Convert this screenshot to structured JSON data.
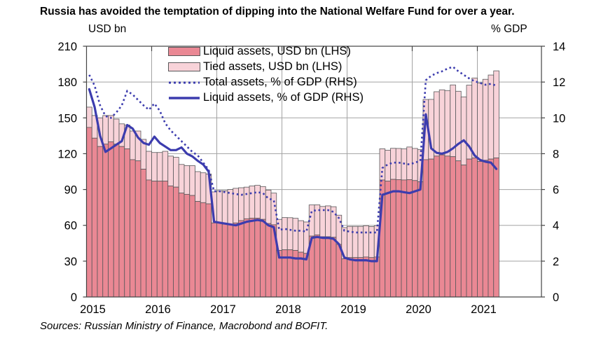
{
  "title": "Russia has avoided the temptation of dipping into the National Welfare Fund for over a year.",
  "footer": {
    "source": "Sources: Russian Ministry of Finance, Macrobond and BOFIT."
  },
  "axes": {
    "left_unit": "USD bn",
    "right_unit": "% GDP",
    "left_ticks": [
      0,
      30,
      60,
      90,
      120,
      150,
      180,
      210
    ],
    "right_ticks": [
      0,
      2,
      4,
      6,
      8,
      10,
      12,
      14
    ],
    "year_labels": [
      "2015",
      "2016",
      "2017",
      "2018",
      "2019",
      "2020",
      "2021"
    ]
  },
  "legend": [
    {
      "label": "Liquid assets, USD bn (LHS)",
      "type": "bar-solid"
    },
    {
      "label": "Tied assets, USD bn (LHS)",
      "type": "bar-light"
    },
    {
      "label": "Total assets, % of GDP (RHS)",
      "type": "dotted-line"
    },
    {
      "label": "Liquid assets, % of GDP (RHS)",
      "type": "solid-line"
    }
  ],
  "colors": {
    "liquid_bar": "#ea8894",
    "tied_bar": "#f8d3d9",
    "bar_stroke": "#58585a",
    "line_blue": "#3c3cae",
    "grid": "#a3a3a3",
    "frame": "#444444",
    "text": "#000000"
  },
  "chart_data": {
    "type": "bar",
    "subtype": "stacked monthly bars + two lines on secondary axis",
    "x_start_month": "2015-01",
    "x_end_month": "2021-04",
    "months_per_bar": 1,
    "ylim_left_usd_bn": [
      0,
      210
    ],
    "ylim_right_pct_gdp": [
      0,
      14
    ],
    "grid": "horizontal every 30 USD bn, vertical at year boundaries",
    "legend_position": "top-center inside plot",
    "series": [
      {
        "name": "Liquid assets, USD bn",
        "axis": "left",
        "render": "bar",
        "values": [
          142,
          133,
          126,
          128,
          130,
          128,
          126,
          124,
          115,
          114,
          107,
          98,
          97,
          97,
          97,
          93,
          92,
          87,
          86,
          85,
          80,
          79,
          78,
          62,
          62,
          61,
          61,
          62,
          64,
          65.5,
          66,
          66,
          65,
          61.5,
          60.5,
          39,
          39.5,
          39.5,
          39,
          37.5,
          36.5,
          51,
          52,
          50.5,
          50.5,
          50,
          44,
          32,
          33,
          33,
          33,
          33.5,
          33,
          33.5,
          98,
          97,
          98.5,
          98.3,
          98,
          98.3,
          97.5,
          96.5,
          115,
          115.5,
          118,
          119,
          118,
          117.5,
          114,
          110.5,
          115.5,
          116.4,
          113.5,
          114.5,
          115.5,
          116.4
        ]
      },
      {
        "name": "Tied assets, USD bn",
        "axis": "left",
        "render": "bar-stacked-on-liquid",
        "values": [
          17,
          19,
          24,
          24,
          22,
          21,
          19,
          20,
          24,
          25,
          25,
          24,
          24,
          24,
          25,
          25,
          25,
          24,
          24,
          25,
          25,
          25,
          25,
          26,
          27,
          28,
          29,
          29,
          27.5,
          26.5,
          27,
          27.5,
          27.5,
          28,
          26.5,
          26,
          27,
          26.9,
          26.9,
          26.4,
          26.3,
          26.1,
          25.2,
          25.3,
          25.8,
          25.6,
          24.5,
          26.1,
          26.1,
          26.1,
          26.1,
          26.2,
          26,
          26.3,
          26.1,
          25.9,
          26,
          26.1,
          26,
          27.3,
          26.9,
          26.9,
          50.4,
          50,
          53.9,
          54.5,
          54.9,
          60.1,
          58.3,
          57.1,
          61.9,
          67,
          65.7,
          67.8,
          70.4,
          73
        ]
      },
      {
        "name": "Total assets, % of GDP",
        "axis": "right",
        "render": "dotted-line",
        "values": [
          12.4,
          11.8,
          10.7,
          10.1,
          10.0,
          10.3,
          10.7,
          11.5,
          11.3,
          11.0,
          10.7,
          10.45,
          10.8,
          10.4,
          9.7,
          9.3,
          9.0,
          8.7,
          8.4,
          8.1,
          7.9,
          7.5,
          7.1,
          5.9,
          5.9,
          5.85,
          5.8,
          5.75,
          5.7,
          5.75,
          5.8,
          5.85,
          5.8,
          5.5,
          5.4,
          3.75,
          3.8,
          3.75,
          3.7,
          3.7,
          3.65,
          4.8,
          4.85,
          4.85,
          4.85,
          4.75,
          4.4,
          3.7,
          3.65,
          3.6,
          3.6,
          3.6,
          3.6,
          3.6,
          7.2,
          7.4,
          7.5,
          7.5,
          7.45,
          7.4,
          7.5,
          7.6,
          12.1,
          12.35,
          12.5,
          12.6,
          12.75,
          12.85,
          12.6,
          12.4,
          12.2,
          12.05,
          11.95,
          11.85,
          11.9,
          11.8
        ]
      },
      {
        "name": "Liquid assets, % of GDP",
        "axis": "right",
        "render": "solid-line",
        "values": [
          11.6,
          10.6,
          9.0,
          8.1,
          8.3,
          8.5,
          8.7,
          9.6,
          9.4,
          8.9,
          8.6,
          8.5,
          8.95,
          8.6,
          8.4,
          8.2,
          8.2,
          8.35,
          8.0,
          7.85,
          7.6,
          7.4,
          7.0,
          4.2,
          4.15,
          4.1,
          4.05,
          4.0,
          4.1,
          4.2,
          4.25,
          4.3,
          4.25,
          4.0,
          3.9,
          2.2,
          2.2,
          2.2,
          2.15,
          2.15,
          2.1,
          3.3,
          3.35,
          3.3,
          3.3,
          3.25,
          2.95,
          2.2,
          2.1,
          2.05,
          2.05,
          2.05,
          2.0,
          2.0,
          5.7,
          5.8,
          5.9,
          5.9,
          5.85,
          5.8,
          5.9,
          6.0,
          10.2,
          8.3,
          8.05,
          8.0,
          8.1,
          8.3,
          8.55,
          8.75,
          8.4,
          7.9,
          7.65,
          7.55,
          7.5,
          7.15
        ]
      }
    ]
  }
}
